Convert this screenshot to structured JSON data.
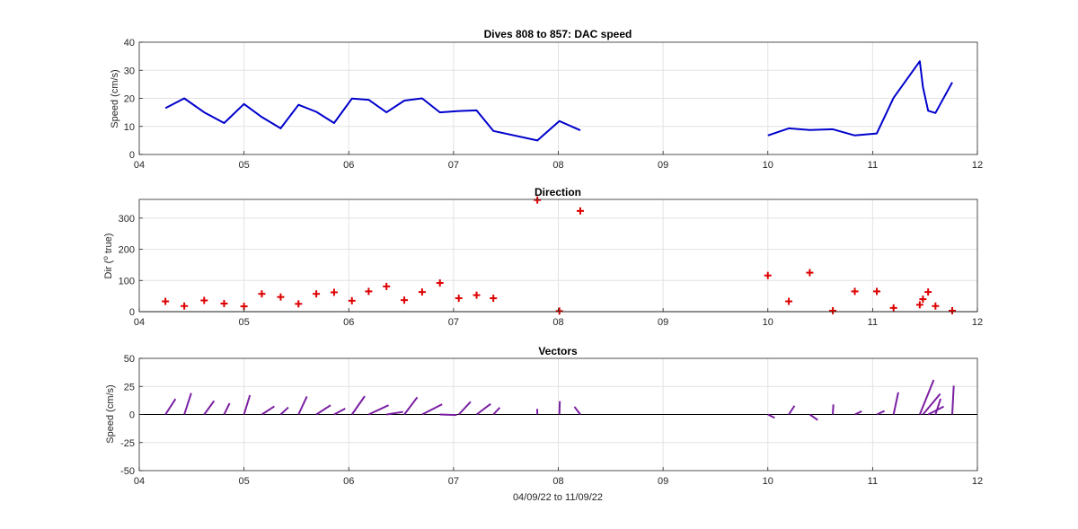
{
  "colors": {
    "speed_line": "#0000cc",
    "direction_marker": "#dd0000",
    "vector": "#7b1fa2",
    "zero_line": "#000000",
    "grid": "#e2e2e2",
    "axes": "#262626"
  },
  "chart_data": [
    {
      "type": "line",
      "title": "Dives 808 to 857: DAC speed",
      "ylabel": "Speed (cm/s)",
      "xlabel": "",
      "xlim": [
        4,
        12
      ],
      "ylim": [
        0,
        40
      ],
      "xticks": [
        "04",
        "05",
        "06",
        "07",
        "08",
        "09",
        "10",
        "11",
        "12"
      ],
      "yticks": [
        "0",
        "10",
        "20",
        "30",
        "40"
      ],
      "grid": true,
      "segments": [
        {
          "x": [
            4.25,
            4.43,
            4.62,
            4.81,
            5.0,
            5.17,
            5.35,
            5.52,
            5.69,
            5.86,
            6.03,
            6.19,
            6.36,
            6.53,
            6.7,
            6.87,
            7.05,
            7.22,
            7.38,
            7.8,
            8.01,
            8.21
          ],
          "y": [
            16.5,
            20.0,
            15.0,
            11.2,
            18.0,
            13.3,
            9.3,
            17.7,
            15.2,
            11.2,
            19.9,
            19.5,
            15.0,
            19.2,
            20.0,
            15.0,
            15.5,
            15.7,
            8.4,
            5.0,
            11.9,
            8.6
          ]
        },
        {
          "x": [
            10.0,
            10.2,
            10.4,
            10.62,
            10.83,
            11.04,
            11.2,
            11.45,
            11.48,
            11.53,
            11.6,
            11.76
          ],
          "y": [
            6.8,
            9.3,
            8.7,
            9.0,
            6.8,
            7.5,
            20.2,
            33.2,
            24.0,
            15.6,
            14.8,
            25.7
          ]
        }
      ]
    },
    {
      "type": "scatter",
      "title": "Direction",
      "ylabel": "Dir (° true)",
      "ylabel_prefix": "Dir (",
      "ylabel_sup": "o",
      "ylabel_suffix": " true)",
      "xlabel": "",
      "xlim": [
        4,
        12
      ],
      "ylim": [
        0,
        360
      ],
      "xticks": [
        "04",
        "05",
        "06",
        "07",
        "08",
        "09",
        "10",
        "11",
        "12"
      ],
      "yticks": [
        "0",
        "100",
        "200",
        "300"
      ],
      "grid": true,
      "marker": "+",
      "x": [
        4.25,
        4.43,
        4.62,
        4.81,
        5.0,
        5.17,
        5.35,
        5.52,
        5.69,
        5.86,
        6.03,
        6.19,
        6.36,
        6.53,
        6.7,
        6.87,
        7.05,
        7.22,
        7.38,
        7.8,
        8.01,
        8.21,
        10.0,
        10.2,
        10.4,
        10.62,
        10.83,
        11.04,
        11.2,
        11.45,
        11.48,
        11.53,
        11.6,
        11.76
      ],
      "y": [
        33,
        18,
        36,
        26,
        17,
        57,
        47,
        25,
        57,
        62,
        35,
        65,
        81,
        37,
        63,
        92,
        43,
        53,
        43,
        358,
        2,
        323,
        116,
        33,
        125,
        3,
        65,
        65,
        12,
        22,
        40,
        63,
        18,
        3
      ]
    },
    {
      "type": "vector",
      "title": "Vectors",
      "ylabel": "Speed (cm/s)",
      "xlabel": "04/09/22 to 11/09/22",
      "xlim": [
        4,
        12
      ],
      "ylim": [
        -50,
        50
      ],
      "xticks": [
        "04",
        "05",
        "06",
        "07",
        "08",
        "09",
        "10",
        "11",
        "12"
      ],
      "yticks": [
        "-50",
        "-25",
        "0",
        "25",
        "50"
      ],
      "grid": true,
      "x": [
        4.25,
        4.43,
        4.62,
        4.81,
        5.0,
        5.17,
        5.35,
        5.52,
        5.69,
        5.86,
        6.03,
        6.19,
        6.36,
        6.53,
        6.7,
        6.87,
        7.05,
        7.22,
        7.38,
        7.8,
        8.01,
        8.21,
        10.0,
        10.2,
        10.4,
        10.62,
        10.83,
        11.04,
        11.2,
        11.45,
        11.48,
        11.53,
        11.6,
        11.76
      ],
      "speed": [
        16.5,
        20.0,
        15.0,
        11.2,
        18.0,
        13.3,
        9.3,
        17.7,
        15.2,
        11.2,
        19.9,
        19.5,
        15.0,
        19.2,
        20.0,
        15.0,
        15.5,
        15.7,
        8.4,
        5.0,
        11.9,
        8.6,
        6.8,
        9.3,
        8.7,
        9.0,
        6.8,
        7.5,
        20.2,
        33.2,
        24.0,
        15.6,
        14.8,
        25.7
      ],
      "direction": [
        33,
        18,
        36,
        26,
        17,
        57,
        47,
        25,
        57,
        62,
        35,
        65,
        81,
        37,
        63,
        92,
        43,
        53,
        43,
        358,
        2,
        323,
        116,
        33,
        125,
        3,
        65,
        65,
        12,
        22,
        40,
        63,
        18,
        3
      ]
    }
  ]
}
